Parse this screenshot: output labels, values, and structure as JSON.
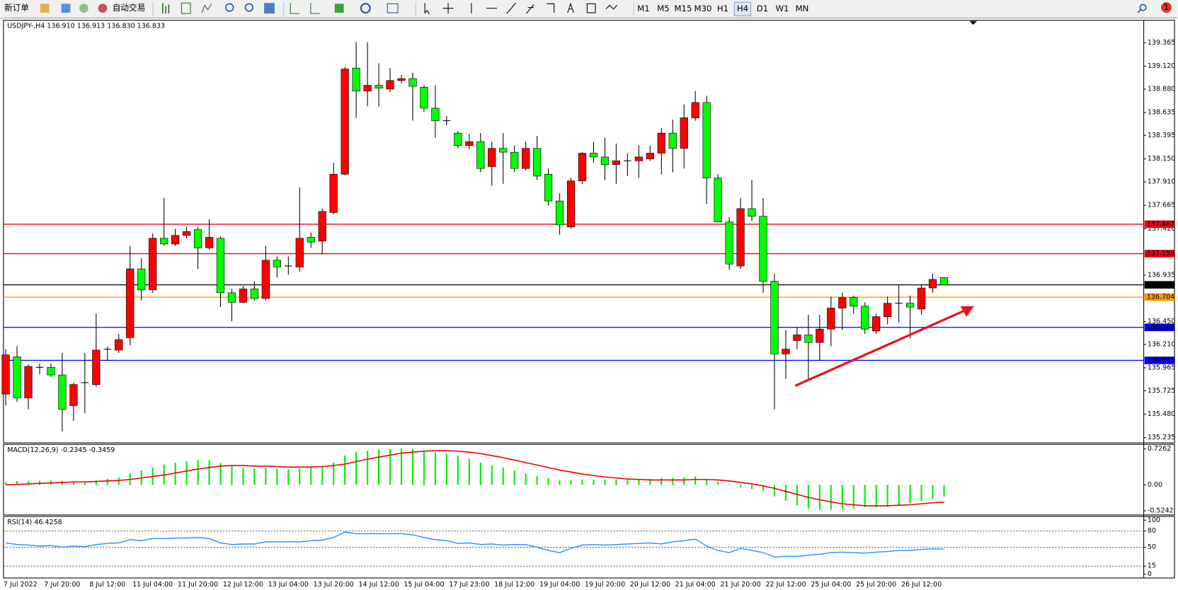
{
  "toolbar": {
    "buttons": [
      "新订单",
      "自动交易"
    ],
    "timeframes": [
      "M1",
      "M5",
      "M15",
      "M30",
      "H1",
      "H4",
      "D1",
      "W1",
      "MN"
    ],
    "active": "H4",
    "alerts": 1
  },
  "chart_data": [
    {
      "type": "candlestick",
      "title": "USDJPY-,H4  136.910 136.913 136.830 136.833",
      "up_color": "#ff0000",
      "down_color": "#00ff00",
      "categories": [
        "7 Jul 2022",
        null,
        null,
        null,
        null,
        "7 Jul 20:00",
        null,
        null,
        null,
        "8 Jul 12:00",
        null,
        null,
        null,
        "11 Jul 04:00",
        null,
        null,
        null,
        "11 Jul 20:00",
        null,
        null,
        null,
        "12 Jul 12:00",
        null,
        null,
        null,
        "13 Jul 04:00",
        null,
        null,
        null,
        "13 Jul 20:00",
        null,
        null,
        null,
        "14 Jul 12:00",
        null,
        null,
        null,
        "15 Jul 04:00",
        null,
        null,
        null,
        "17 Jul 23:00",
        null,
        null,
        null,
        "18 Jul 12:00",
        null,
        null,
        null,
        "19 Jul 04:00",
        null,
        null,
        null,
        "19 Jul 20:00",
        null,
        null,
        null,
        "20 Jul 12:00",
        null,
        null,
        null,
        "21 Jul 04:00",
        null,
        null,
        null,
        "21 Jul 20:00",
        null,
        null,
        null,
        "22 Jul 12:00",
        null,
        null,
        null,
        "25 Jul 04:00",
        null,
        null,
        null,
        "25 Jul 20:00",
        null,
        null,
        null,
        "26 Jul 12:00",
        null,
        null
      ],
      "open": [
        135.69,
        136.08,
        135.65,
        135.97,
        135.97,
        135.89,
        135.57,
        135.81,
        135.79,
        136.16,
        136.15,
        136.28,
        137.0,
        136.78,
        137.32,
        137.26,
        137.35,
        137.41,
        137.22,
        137.32,
        136.75,
        136.65,
        136.79,
        136.69,
        137.09,
        137.03,
        137.02,
        137.33,
        137.29,
        137.59,
        137.99,
        139.1,
        138.86,
        138.92,
        138.88,
        138.97,
        138.99,
        138.9,
        138.68,
        138.55,
        138.42,
        138.29,
        138.33,
        138.07,
        138.26,
        138.22,
        138.05,
        138.26,
        137.99,
        137.71,
        137.44,
        137.92,
        138.21,
        138.17,
        138.09,
        138.13,
        138.13,
        138.15,
        138.21,
        138.42,
        138.26,
        138.58,
        138.74,
        137.95,
        137.49,
        137.03,
        137.63,
        137.55,
        136.87,
        136.11,
        136.25,
        136.31,
        136.23,
        136.37,
        136.59,
        136.7,
        136.61,
        136.35,
        136.5,
        136.64,
        136.64,
        136.58,
        136.8,
        136.91
      ],
      "high": [
        136.16,
        136.19,
        136.0,
        136.01,
        136.01,
        136.12,
        135.81,
        136.12,
        136.53,
        136.19,
        136.32,
        137.24,
        137.11,
        137.37,
        137.74,
        137.42,
        137.44,
        137.44,
        137.52,
        137.34,
        136.79,
        136.82,
        136.87,
        137.24,
        137.13,
        137.13,
        137.85,
        137.38,
        137.63,
        138.11,
        139.11,
        139.37,
        139.37,
        139.15,
        139.1,
        139.03,
        139.05,
        138.92,
        138.92,
        138.6,
        138.44,
        138.41,
        138.42,
        138.33,
        138.42,
        138.29,
        138.33,
        138.39,
        138.05,
        137.79,
        137.95,
        138.22,
        138.33,
        138.37,
        138.31,
        138.21,
        138.29,
        138.29,
        138.47,
        138.56,
        138.72,
        138.86,
        138.81,
        137.99,
        137.54,
        137.74,
        137.93,
        137.74,
        136.95,
        136.36,
        136.39,
        136.52,
        136.52,
        136.71,
        136.75,
        136.72,
        136.65,
        136.53,
        136.71,
        136.83,
        136.72,
        136.83,
        136.95,
        136.913
      ],
      "low": [
        135.57,
        135.61,
        135.53,
        135.9,
        135.87,
        135.3,
        135.41,
        135.49,
        135.77,
        136.04,
        136.12,
        136.2,
        136.67,
        136.75,
        137.24,
        137.24,
        137.32,
        137.0,
        137.2,
        136.6,
        136.45,
        136.64,
        136.67,
        136.67,
        136.91,
        136.94,
        136.97,
        137.22,
        137.15,
        137.57,
        137.98,
        138.58,
        138.7,
        138.7,
        138.85,
        138.94,
        138.55,
        138.64,
        138.37,
        138.5,
        138.26,
        138.25,
        138.01,
        137.87,
        137.89,
        138.01,
        138.03,
        137.93,
        137.66,
        137.36,
        137.42,
        137.89,
        138.11,
        137.93,
        137.89,
        137.97,
        137.95,
        138.13,
        137.99,
        138.01,
        138.05,
        138.55,
        137.68,
        137.49,
        136.99,
        137.0,
        137.5,
        136.75,
        135.53,
        135.85,
        136.16,
        135.85,
        136.04,
        136.19,
        136.36,
        136.53,
        136.32,
        136.32,
        136.42,
        136.44,
        136.27,
        136.52,
        136.75,
        136.83
      ],
      "close": [
        136.1,
        135.65,
        135.98,
        135.97,
        135.89,
        135.53,
        135.79,
        135.81,
        136.15,
        136.16,
        136.26,
        137.0,
        136.78,
        137.32,
        137.26,
        137.35,
        137.39,
        137.22,
        137.33,
        136.75,
        136.65,
        136.79,
        136.69,
        137.09,
        137.02,
        137.03,
        137.32,
        137.28,
        137.6,
        137.99,
        139.09,
        138.86,
        138.92,
        138.89,
        138.97,
        138.99,
        138.91,
        138.68,
        138.55,
        138.55,
        138.29,
        138.33,
        138.05,
        138.26,
        138.22,
        138.05,
        138.26,
        137.97,
        137.71,
        137.46,
        137.92,
        138.21,
        138.17,
        138.09,
        138.13,
        138.13,
        138.17,
        138.21,
        138.42,
        138.26,
        138.58,
        138.74,
        137.95,
        137.49,
        137.05,
        137.63,
        137.55,
        136.87,
        136.11,
        136.16,
        136.31,
        136.23,
        136.37,
        136.59,
        136.7,
        136.61,
        136.37,
        136.5,
        136.64,
        136.64,
        136.6,
        136.8,
        136.89,
        136.833
      ],
      "ylim": [
        135.18,
        139.6
      ],
      "yticks": [
        139.365,
        {
          "value": 139.12,
          "label": "139.120"
        },
        {
          "value": 138.88,
          "label": "138.880"
        },
        138.635,
        138.395,
        {
          "value": 138.15,
          "label": "138.150"
        },
        {
          "value": 137.91,
          "label": "137.910"
        },
        137.665,
        {
          "value": 137.42,
          "label": "137.420"
        },
        136.935,
        {
          "value": 136.45,
          "label": "136.450"
        },
        {
          "value": 136.21,
          "label": "136.210"
        },
        135.965,
        135.725,
        {
          "value": 135.48,
          "label": "135.480"
        },
        135.235
      ],
      "lines": [
        {
          "value": 137.467,
          "color": "#e8001c"
        },
        {
          "value": 137.159,
          "color": "#e8001c"
        },
        {
          "value": 136.833,
          "color": "#000000"
        },
        {
          "value": 136.704,
          "color": "#ff9900"
        },
        {
          "value": 136.388,
          "color": "#0000ff"
        },
        {
          "value": 136.043,
          "color": "#0000ff"
        }
      ]
    },
    {
      "type": "macd",
      "title": "MACD(12,26,9) -0.2345 -0.3459",
      "ylim": [
        -0.605,
        0.817
      ],
      "yticks": [
        0.7262,
        {
          "value": 0,
          "label": "0.00"
        },
        -0.5242
      ],
      "series": [
        {
          "style": "bar",
          "color": "#00ee00",
          "values": [
            0.06,
            0.08,
            0.08,
            0.08,
            0.09,
            0.08,
            0.06,
            0.06,
            0.09,
            0.12,
            0.15,
            0.24,
            0.29,
            0.35,
            0.41,
            0.45,
            0.48,
            0.5,
            0.5,
            0.44,
            0.38,
            0.35,
            0.33,
            0.35,
            0.33,
            0.32,
            0.33,
            0.35,
            0.38,
            0.45,
            0.59,
            0.66,
            0.69,
            0.71,
            0.72,
            0.74,
            0.72,
            0.69,
            0.66,
            0.63,
            0.59,
            0.53,
            0.45,
            0.39,
            0.35,
            0.29,
            0.23,
            0.18,
            0.14,
            0.09,
            0.09,
            0.11,
            0.11,
            0.11,
            0.11,
            0.11,
            0.11,
            0.12,
            0.14,
            0.14,
            0.15,
            0.17,
            0.12,
            0.06,
            0.01,
            -0.05,
            -0.08,
            -0.12,
            -0.23,
            -0.32,
            -0.41,
            -0.47,
            -0.5,
            -0.5,
            -0.48,
            -0.47,
            -0.45,
            -0.45,
            -0.44,
            -0.41,
            -0.37,
            -0.33,
            -0.28,
            -0.2345
          ]
        },
        {
          "style": "line",
          "color": "#ee0000",
          "values": [
            0.0,
            0.01,
            0.02,
            0.03,
            0.04,
            0.05,
            0.06,
            0.06,
            0.07,
            0.08,
            0.09,
            0.11,
            0.14,
            0.17,
            0.2,
            0.24,
            0.28,
            0.32,
            0.35,
            0.38,
            0.39,
            0.39,
            0.38,
            0.38,
            0.37,
            0.36,
            0.36,
            0.36,
            0.37,
            0.39,
            0.42,
            0.47,
            0.52,
            0.56,
            0.6,
            0.64,
            0.66,
            0.68,
            0.69,
            0.69,
            0.68,
            0.66,
            0.63,
            0.59,
            0.55,
            0.5,
            0.45,
            0.4,
            0.35,
            0.3,
            0.26,
            0.22,
            0.19,
            0.16,
            0.14,
            0.12,
            0.11,
            0.1,
            0.1,
            0.1,
            0.1,
            0.11,
            0.11,
            0.1,
            0.08,
            0.05,
            0.02,
            -0.02,
            -0.07,
            -0.13,
            -0.19,
            -0.25,
            -0.3,
            -0.34,
            -0.38,
            -0.4,
            -0.42,
            -0.42,
            -0.42,
            -0.41,
            -0.4,
            -0.38,
            -0.36,
            -0.3459
          ]
        }
      ]
    },
    {
      "type": "line",
      "title": "RSI(14) 46.4258",
      "color": "#1e90ff",
      "ylim": [
        -7,
        107
      ],
      "yticks": [
        100,
        80,
        50,
        15,
        0
      ],
      "levels": [
        80,
        50,
        15
      ],
      "values": [
        58,
        55,
        54,
        52,
        53,
        50,
        52,
        51,
        55,
        57,
        58,
        64,
        62,
        66,
        66,
        67,
        67,
        68,
        66,
        58,
        55,
        56,
        56,
        60,
        60,
        60,
        60,
        62,
        63,
        68,
        78,
        75,
        75,
        75,
        75,
        75,
        73,
        68,
        64,
        62,
        57,
        58,
        55,
        56,
        54,
        55,
        55,
        50,
        44,
        40,
        48,
        54,
        55,
        54,
        55,
        56,
        57,
        58,
        56,
        60,
        62,
        65,
        52,
        44,
        40,
        48,
        44,
        40,
        32,
        33,
        33,
        35,
        37,
        40,
        41,
        40,
        39,
        41,
        42,
        44,
        44,
        46,
        47,
        46.4258
      ]
    }
  ]
}
